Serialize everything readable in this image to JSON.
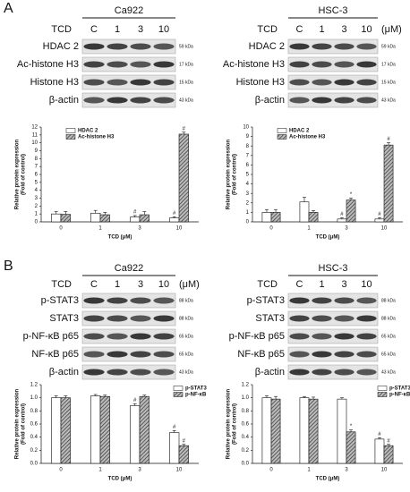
{
  "figure": {
    "panel_labels": [
      "A",
      "B"
    ]
  },
  "blots": [
    {
      "cell_line": "Ca922",
      "treatment_label": "TCD",
      "lanes": [
        "C",
        "1",
        "3",
        "10"
      ],
      "rows": [
        {
          "label": "HDAC 2",
          "size": "59 kDa"
        },
        {
          "label": "Ac-histone H3",
          "size": "17 kDa"
        },
        {
          "label": "Histone H3",
          "size": "15 kDa"
        },
        {
          "label": "β-actin",
          "size": "43 kDa"
        }
      ]
    },
    {
      "cell_line": "HSC-3",
      "treatment_label": "TCD",
      "lanes": [
        "C",
        "1",
        "3",
        "10"
      ],
      "unit": "(μM)",
      "rows": [
        {
          "label": "HDAC 2",
          "size": "59 kDa"
        },
        {
          "label": "Ac-histone H3",
          "size": "17 kDa"
        },
        {
          "label": "Histone H3",
          "size": "15 kDa"
        },
        {
          "label": "β-actin",
          "size": "43 kDa"
        }
      ]
    },
    {
      "cell_line": "Ca922",
      "treatment_label": "TCD",
      "lanes": [
        "C",
        "1",
        "3",
        "10"
      ],
      "unit": "(μM)",
      "rows": [
        {
          "label": "p-STAT3",
          "size": "88 kDa"
        },
        {
          "label": "STAT3",
          "size": "88 kDa"
        },
        {
          "label": "p-NF-κB p65",
          "size": "65 kDa"
        },
        {
          "label": "NF-κB p65",
          "size": "65 kDa"
        },
        {
          "label": "β-actin",
          "size": "43 kDa"
        }
      ]
    },
    {
      "cell_line": "HSC-3",
      "treatment_label": "TCD",
      "lanes": [
        "C",
        "1",
        "3",
        "10"
      ],
      "rows": [
        {
          "label": "p-STAT3",
          "size": "88 kDa"
        },
        {
          "label": "STAT3",
          "size": "88 kDa"
        },
        {
          "label": "p-NF-κB p65",
          "size": "65 kDa"
        },
        {
          "label": "NF-κB p65",
          "size": "65 kDa"
        },
        {
          "label": "β-actin",
          "size": "43 kDa"
        }
      ]
    }
  ],
  "chart_data": [
    {
      "type": "bar",
      "categories": [
        "0",
        "1",
        "3",
        "10"
      ],
      "xlabel": "TCD (μM)",
      "ylabel": [
        "Relative protein expression",
        "(Fold of control)"
      ],
      "ylim": [
        0,
        12
      ],
      "yticks": [
        0,
        1,
        2,
        3,
        4,
        5,
        6,
        7,
        8,
        9,
        10,
        11,
        12
      ],
      "legend_loc": "upper left",
      "series": [
        {
          "name": "HDAC 2",
          "color": "#ffffff",
          "hatch": false,
          "values": [
            1.0,
            1.1,
            0.6,
            0.5
          ],
          "errors": [
            0.3,
            0.35,
            0.2,
            0.15
          ],
          "annotations": [
            null,
            null,
            "#",
            "#"
          ]
        },
        {
          "name": "Ac-histone H3",
          "color": "#888888",
          "hatch": true,
          "values": [
            0.95,
            0.9,
            0.9,
            11.1
          ],
          "errors": [
            0.35,
            0.3,
            0.4,
            0.25
          ],
          "annotations": [
            null,
            null,
            null,
            "#"
          ]
        }
      ]
    },
    {
      "type": "bar",
      "categories": [
        "0",
        "1",
        "3",
        "10"
      ],
      "xlabel": "TCD (μM)",
      "ylabel": [
        "Relative protein expression",
        "(Fold of control)"
      ],
      "ylim": [
        0,
        10
      ],
      "yticks": [
        0,
        1,
        2,
        3,
        4,
        5,
        6,
        7,
        8,
        9,
        10
      ],
      "legend_loc": "upper left",
      "series": [
        {
          "name": "HDAC 2",
          "color": "#ffffff",
          "hatch": false,
          "values": [
            1.0,
            2.1,
            0.3,
            0.3
          ],
          "errors": [
            0.3,
            0.5,
            0.15,
            0.15
          ],
          "annotations": [
            null,
            null,
            "#",
            "#"
          ]
        },
        {
          "name": "Ac-histone H3",
          "color": "#888888",
          "hatch": true,
          "values": [
            1.0,
            1.0,
            2.3,
            8.1
          ],
          "errors": [
            0.3,
            0.2,
            0.2,
            0.25
          ],
          "annotations": [
            null,
            null,
            "*",
            "#"
          ]
        }
      ]
    },
    {
      "type": "bar",
      "categories": [
        "0",
        "1",
        "3",
        "10"
      ],
      "xlabel": "TCD (μM)",
      "ylabel": [
        "Relative protein expression",
        "(Fold of control)"
      ],
      "ylim": [
        0,
        1.2
      ],
      "yticks": [
        {
          "value": 0,
          "label": "0.0"
        },
        0.2,
        0.4,
        0.6,
        0.8,
        {
          "value": 1,
          "label": "1.0"
        },
        1.2
      ],
      "legend_loc": "upper right",
      "series": [
        {
          "name": "p-STAT3",
          "color": "#ffffff",
          "hatch": false,
          "values": [
            1.0,
            1.03,
            0.88,
            0.47
          ],
          "errors": [
            0.03,
            0.02,
            0.03,
            0.03
          ],
          "annotations": [
            null,
            null,
            "#",
            "#"
          ]
        },
        {
          "name": "p-NF-κB",
          "color": "#888888",
          "hatch": true,
          "values": [
            1.0,
            1.02,
            1.02,
            0.27
          ],
          "errors": [
            0.03,
            0.02,
            0.02,
            0.02
          ],
          "annotations": [
            null,
            null,
            null,
            "#"
          ]
        }
      ]
    },
    {
      "type": "bar",
      "categories": [
        "0",
        "1",
        "3",
        "10"
      ],
      "xlabel": "TCD (μM)",
      "ylabel": [
        "Relative protein expression",
        "(Fold of control)"
      ],
      "ylim": [
        0,
        1.2
      ],
      "yticks": [
        {
          "value": 0,
          "label": "0.0"
        },
        0.2,
        0.4,
        0.6,
        0.8,
        {
          "value": 1,
          "label": "1.0"
        },
        1.2
      ],
      "legend_loc": "upper right",
      "series": [
        {
          "name": "p-STAT3",
          "color": "#ffffff",
          "hatch": false,
          "values": [
            1.0,
            1.0,
            0.98,
            0.37
          ],
          "errors": [
            0.03,
            0.02,
            0.02,
            0.02
          ],
          "annotations": [
            null,
            null,
            null,
            "#"
          ]
        },
        {
          "name": "p-NF-κB",
          "color": "#888888",
          "hatch": true,
          "values": [
            0.98,
            0.98,
            0.48,
            0.27
          ],
          "errors": [
            0.04,
            0.03,
            0.03,
            0.02
          ],
          "annotations": [
            null,
            null,
            "*",
            "#"
          ]
        }
      ]
    }
  ]
}
